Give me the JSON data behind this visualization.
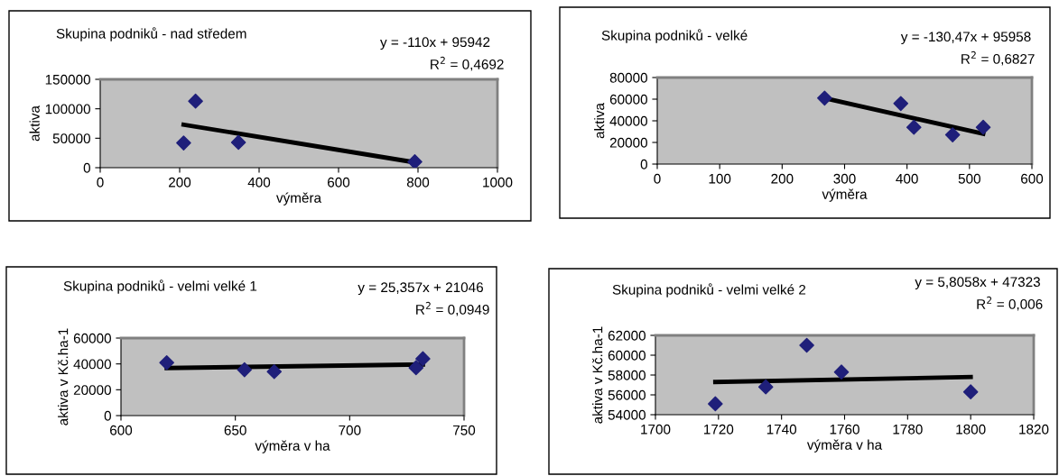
{
  "chart_data": [
    {
      "type": "scatter",
      "title": "Skupina podniků - nad středem",
      "xlabel": "výměra",
      "ylabel": "aktiva",
      "xlim": [
        0,
        1000
      ],
      "xticks": [
        0,
        200,
        400,
        600,
        800,
        1000
      ],
      "ylim": [
        0,
        150000
      ],
      "yticks": [
        0,
        50000,
        100000,
        150000
      ],
      "grid": false,
      "legend": false,
      "annotations": [
        "y = -110x + 95942",
        "R$^{2}$ = 0,4692"
      ],
      "series": [
        {
          "marker": "diamond",
          "color": "#1f1f7a",
          "x": [
            210,
            240,
            348,
            792
          ],
          "values": [
            42000,
            113000,
            43000,
            10000
          ]
        },
        {
          "type": "line",
          "marker": "none",
          "line_style": "solid",
          "color": "#000000",
          "x": [
            210,
            792
          ],
          "values": [
            73000,
            9000
          ]
        }
      ]
    },
    {
      "type": "scatter",
      "title": "Skupina podniků - velké",
      "xlabel": "výměra",
      "ylabel": "aktiva",
      "xlim": [
        0,
        600
      ],
      "xticks": [
        0,
        100,
        200,
        300,
        400,
        500,
        600
      ],
      "ylim": [
        0,
        80000
      ],
      "yticks": [
        0,
        20000,
        40000,
        60000,
        80000
      ],
      "grid": false,
      "legend": false,
      "annotations": [
        "y = -130,47x + 95958",
        "R$^{2}$ = 0,6827"
      ],
      "series": [
        {
          "marker": "diamond",
          "color": "#1f1f7a",
          "x": [
            268,
            390,
            411,
            473,
            522
          ],
          "values": [
            61000,
            56000,
            34000,
            27000,
            34000
          ]
        },
        {
          "type": "line",
          "marker": "none",
          "line_style": "solid",
          "color": "#000000",
          "x": [
            268,
            522
          ],
          "values": [
            61000,
            28000
          ]
        }
      ]
    },
    {
      "type": "scatter",
      "title": "Skupina podniků - velmi velké 1",
      "xlabel": "výměra v ha",
      "ylabel": "aktiva v Kč.ha-1",
      "xlim": [
        600,
        750
      ],
      "xticks": [
        600,
        650,
        700,
        750
      ],
      "ylim": [
        0,
        60000
      ],
      "yticks": [
        0,
        20000,
        40000,
        60000
      ],
      "grid": false,
      "legend": false,
      "annotations": [
        "y = 25,357x + 21046",
        "R$^{2}$ = 0,0949"
      ],
      "series": [
        {
          "marker": "diamond",
          "color": "#1f1f7a",
          "x": [
            620,
            654,
            667,
            729,
            732
          ],
          "values": [
            41000,
            35500,
            34000,
            37000,
            44000
          ]
        },
        {
          "type": "line",
          "marker": "none",
          "line_style": "solid",
          "color": "#000000",
          "x": [
            620,
            732
          ],
          "values": [
            36800,
            39600
          ]
        }
      ]
    },
    {
      "type": "scatter",
      "title": "Skupina podniků - velmi velké 2",
      "xlabel": "výměra v ha",
      "ylabel": "aktiva v Kč.ha-1",
      "xlim": [
        1700,
        1820
      ],
      "xticks": [
        1700,
        1720,
        1740,
        1760,
        1780,
        1800,
        1820
      ],
      "ylim": [
        54000,
        62000
      ],
      "yticks": [
        54000,
        56000,
        58000,
        60000,
        62000
      ],
      "grid": false,
      "legend": false,
      "annotations": [
        "y = 5,8058x + 47323",
        "R$^{2}$ = 0,006"
      ],
      "series": [
        {
          "marker": "diamond",
          "color": "#1f1f7a",
          "x": [
            1719,
            1735,
            1748,
            1759,
            1800
          ],
          "values": [
            55100,
            56800,
            61000,
            58300,
            56300
          ]
        },
        {
          "type": "line",
          "marker": "none",
          "line_style": "solid",
          "color": "#000000",
          "x": [
            1719,
            1800
          ],
          "values": [
            57300,
            57800
          ]
        }
      ]
    }
  ]
}
